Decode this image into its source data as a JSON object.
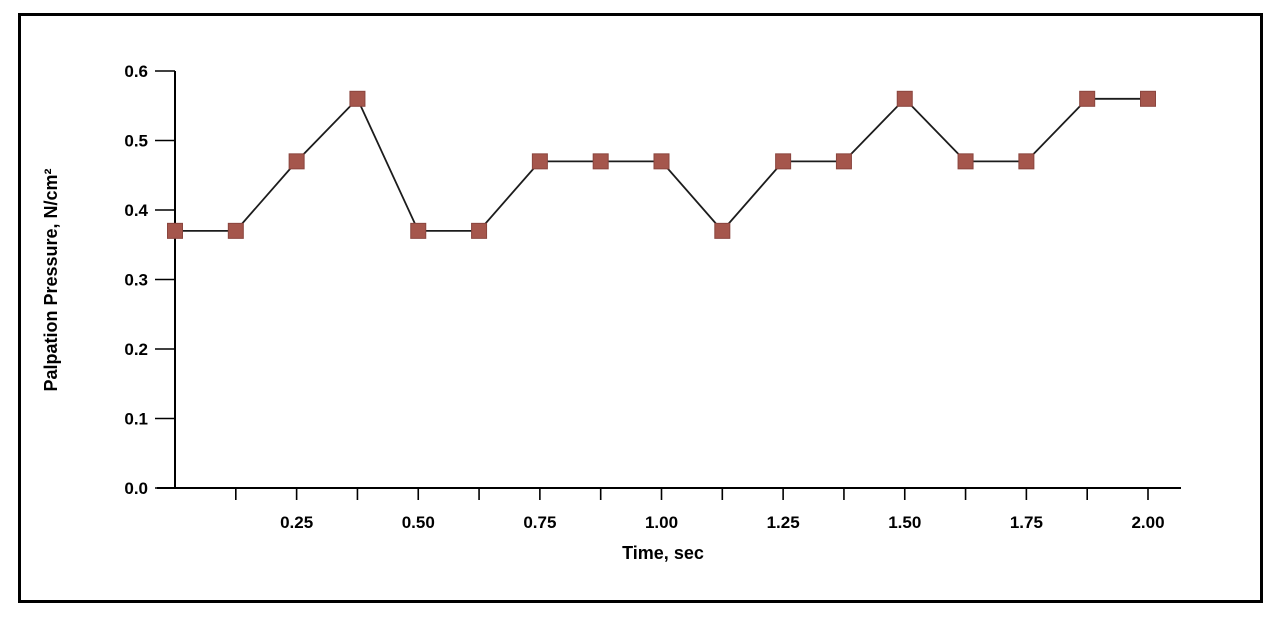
{
  "frame": {
    "background_color": "#ffffff",
    "border_color": "#000000"
  },
  "chart_data": {
    "type": "line",
    "title": "",
    "xlabel": "Time, sec",
    "ylabel": "Palpation Pressure, N/cm²",
    "xlim": [
      0,
      2.0
    ],
    "ylim": [
      0,
      0.6
    ],
    "grid": false,
    "legend": null,
    "marker": "square",
    "marker_color": "#a5564c",
    "marker_edge_color": "#8a453e",
    "line_color": "#1c1c1c",
    "axis_color": "#000000",
    "series": [
      {
        "name": "palpation-pressure",
        "x": [
          0,
          0.125,
          0.25,
          0.375,
          0.5,
          0.625,
          0.75,
          0.875,
          1.0,
          1.125,
          1.25,
          1.375,
          1.5,
          1.625,
          1.75,
          1.875,
          2.0
        ],
        "y": [
          0.37,
          0.37,
          0.47,
          0.56,
          0.37,
          0.37,
          0.47,
          0.47,
          0.47,
          0.37,
          0.47,
          0.47,
          0.56,
          0.47,
          0.47,
          0.56,
          0.56
        ]
      }
    ],
    "xticks": [
      {
        "value": 0.125,
        "label": ""
      },
      {
        "value": 0.25,
        "label": "0.25"
      },
      {
        "value": 0.375,
        "label": ""
      },
      {
        "value": 0.5,
        "label": "0.50"
      },
      {
        "value": 0.625,
        "label": ""
      },
      {
        "value": 0.75,
        "label": "0.75"
      },
      {
        "value": 0.875,
        "label": ""
      },
      {
        "value": 1.0,
        "label": "1.00"
      },
      {
        "value": 1.125,
        "label": ""
      },
      {
        "value": 1.25,
        "label": "1.25"
      },
      {
        "value": 1.375,
        "label": ""
      },
      {
        "value": 1.5,
        "label": "1.50"
      },
      {
        "value": 1.625,
        "label": ""
      },
      {
        "value": 1.75,
        "label": "1.75"
      },
      {
        "value": 1.875,
        "label": ""
      },
      {
        "value": 2.0,
        "label": "2.00"
      }
    ],
    "yticks": [
      {
        "value": 0.0,
        "label": "0.0"
      },
      {
        "value": 0.1,
        "label": "0.1"
      },
      {
        "value": 0.2,
        "label": "0.2"
      },
      {
        "value": 0.3,
        "label": "0.3"
      },
      {
        "value": 0.4,
        "label": "0.4"
      },
      {
        "value": 0.5,
        "label": "0.5"
      },
      {
        "value": 0.6,
        "label": "0.6"
      }
    ]
  }
}
